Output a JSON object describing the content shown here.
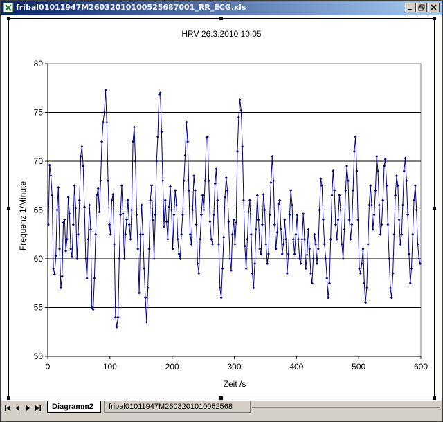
{
  "window": {
    "title": "fribal01011947M26032010100525687001_RR_ECG.xls",
    "minimize_icon": "minimize-icon",
    "restore_icon": "restore-icon",
    "close_icon": "close-icon",
    "app_icon": "excel-icon"
  },
  "sheet_tabs": {
    "items": [
      {
        "label": "Diagramm2",
        "active": true
      },
      {
        "label": "fribal01011947M260320101005256​8",
        "active": false
      }
    ],
    "nav_icons": [
      "first-sheet-icon",
      "prev-sheet-icon",
      "next-sheet-icon",
      "last-sheet-icon"
    ]
  },
  "chart_data": {
    "type": "line",
    "title": "HRV  26.3.2010 10:05",
    "xlabel": "Zeit /s",
    "ylabel": "Frequenz 1/Minute",
    "xlim": [
      0,
      600
    ],
    "ylim": [
      50,
      80
    ],
    "xticks": [
      0,
      100,
      200,
      300,
      400,
      500,
      600
    ],
    "yticks": [
      50,
      55,
      60,
      65,
      70,
      75,
      80
    ],
    "grid": "horizontal",
    "legend": "none",
    "series_color": "#000080",
    "marker": "diamond",
    "series": [
      {
        "points": [
          [
            1,
            63.5
          ],
          [
            3,
            69.6
          ],
          [
            5,
            68.5
          ],
          [
            7,
            66.5
          ],
          [
            9,
            59
          ],
          [
            11,
            58.4
          ],
          [
            13,
            60.3
          ],
          [
            15,
            65
          ],
          [
            17,
            67.3
          ],
          [
            19,
            61
          ],
          [
            21,
            57
          ],
          [
            23,
            58.2
          ],
          [
            25,
            63.7
          ],
          [
            27,
            64
          ],
          [
            29,
            60.8
          ],
          [
            31,
            62
          ],
          [
            33,
            66.3
          ],
          [
            35,
            64.6
          ],
          [
            37,
            61
          ],
          [
            39,
            60.2
          ],
          [
            41,
            63.5
          ],
          [
            43,
            67.5
          ],
          [
            45,
            65.2
          ],
          [
            47,
            60
          ],
          [
            49,
            62.5
          ],
          [
            51,
            66
          ],
          [
            53,
            70.5
          ],
          [
            55,
            71.5
          ],
          [
            57,
            69.5
          ],
          [
            59,
            65.3
          ],
          [
            61,
            60
          ],
          [
            63,
            58
          ],
          [
            65,
            62
          ],
          [
            67,
            65.5
          ],
          [
            69,
            63
          ],
          [
            71,
            55
          ],
          [
            73,
            54.8
          ],
          [
            75,
            58
          ],
          [
            77,
            62.5
          ],
          [
            79,
            66.5
          ],
          [
            81,
            67.2
          ],
          [
            83,
            64.8
          ],
          [
            85,
            68
          ],
          [
            87,
            72
          ],
          [
            89,
            74
          ],
          [
            91,
            75
          ],
          [
            93,
            77.3
          ],
          [
            95,
            74
          ],
          [
            97,
            68
          ],
          [
            99,
            63.5
          ],
          [
            101,
            62.5
          ],
          [
            103,
            66
          ],
          [
            105,
            66.6
          ],
          [
            107,
            61.5
          ],
          [
            109,
            54
          ],
          [
            111,
            53
          ],
          [
            113,
            54
          ],
          [
            115,
            60
          ],
          [
            117,
            64.5
          ],
          [
            119,
            67.5
          ],
          [
            121,
            64.6
          ],
          [
            123,
            60
          ],
          [
            125,
            62.5
          ],
          [
            127,
            64
          ],
          [
            129,
            66
          ],
          [
            131,
            63.5
          ],
          [
            133,
            62
          ],
          [
            135,
            65
          ],
          [
            137,
            72
          ],
          [
            139,
            73.5
          ],
          [
            141,
            70
          ],
          [
            143,
            64.5
          ],
          [
            145,
            61
          ],
          [
            147,
            56.5
          ],
          [
            149,
            62.5
          ],
          [
            151,
            65.5
          ],
          [
            153,
            62.5
          ],
          [
            155,
            59
          ],
          [
            157,
            56
          ],
          [
            159,
            53.5
          ],
          [
            161,
            57
          ],
          [
            163,
            61
          ],
          [
            165,
            66
          ],
          [
            167,
            67.5
          ],
          [
            169,
            64
          ],
          [
            171,
            60
          ],
          [
            173,
            64.5
          ],
          [
            175,
            70
          ],
          [
            177,
            72.5
          ],
          [
            179,
            76.8
          ],
          [
            181,
            77
          ],
          [
            183,
            73
          ],
          [
            185,
            68
          ],
          [
            187,
            63.3
          ],
          [
            189,
            66
          ],
          [
            191,
            63.8
          ],
          [
            193,
            62
          ],
          [
            195,
            65.3
          ],
          [
            197,
            67.4
          ],
          [
            199,
            65
          ],
          [
            201,
            61
          ],
          [
            203,
            64.5
          ],
          [
            205,
            67
          ],
          [
            207,
            65.5
          ],
          [
            209,
            62
          ],
          [
            211,
            60.5
          ],
          [
            213,
            60
          ],
          [
            215,
            62.5
          ],
          [
            217,
            64.5
          ],
          [
            219,
            68
          ],
          [
            221,
            70.6
          ],
          [
            223,
            74
          ],
          [
            225,
            72
          ],
          [
            227,
            67
          ],
          [
            229,
            62.5
          ],
          [
            231,
            61.5
          ],
          [
            233,
            65
          ],
          [
            235,
            68.5
          ],
          [
            237,
            67
          ],
          [
            239,
            63.5
          ],
          [
            241,
            59.5
          ],
          [
            243,
            58.5
          ],
          [
            245,
            62
          ],
          [
            247,
            64.5
          ],
          [
            249,
            66.5
          ],
          [
            251,
            65
          ],
          [
            253,
            68
          ],
          [
            255,
            72.4
          ],
          [
            257,
            72.5
          ],
          [
            259,
            68
          ],
          [
            261,
            63.8
          ],
          [
            263,
            62
          ],
          [
            265,
            61.5
          ],
          [
            267,
            64.5
          ],
          [
            269,
            67.7
          ],
          [
            271,
            69.2
          ],
          [
            273,
            66
          ],
          [
            275,
            61.5
          ],
          [
            277,
            57
          ],
          [
            279,
            56
          ],
          [
            281,
            59
          ],
          [
            283,
            62.2
          ],
          [
            285,
            66.3
          ],
          [
            287,
            68.3
          ],
          [
            289,
            67
          ],
          [
            291,
            63.8
          ],
          [
            293,
            60
          ],
          [
            295,
            58.8
          ],
          [
            297,
            62.5
          ],
          [
            299,
            64
          ],
          [
            301,
            61.5
          ],
          [
            303,
            63.7
          ],
          [
            305,
            71
          ],
          [
            307,
            74.5
          ],
          [
            309,
            76.3
          ],
          [
            311,
            75.2
          ],
          [
            313,
            71.5
          ],
          [
            315,
            66
          ],
          [
            317,
            61.3
          ],
          [
            319,
            59
          ],
          [
            321,
            62
          ],
          [
            323,
            64.8
          ],
          [
            325,
            66
          ],
          [
            327,
            62.5
          ],
          [
            329,
            58.5
          ],
          [
            331,
            57
          ],
          [
            333,
            59.5
          ],
          [
            335,
            63
          ],
          [
            337,
            66.5
          ],
          [
            339,
            64
          ],
          [
            341,
            61
          ],
          [
            343,
            60.5
          ],
          [
            345,
            63.5
          ],
          [
            347,
            66.6
          ],
          [
            349,
            65
          ],
          [
            351,
            61.5
          ],
          [
            353,
            59.5
          ],
          [
            355,
            60.5
          ],
          [
            357,
            64.5
          ],
          [
            359,
            67.8
          ],
          [
            361,
            70.5
          ],
          [
            363,
            68
          ],
          [
            365,
            63.5
          ],
          [
            367,
            61
          ],
          [
            369,
            62.7
          ],
          [
            371,
            65.6
          ],
          [
            373,
            66
          ],
          [
            375,
            63
          ],
          [
            377,
            60.5
          ],
          [
            379,
            61.5
          ],
          [
            381,
            64
          ],
          [
            383,
            62
          ],
          [
            385,
            58.5
          ],
          [
            387,
            60.5
          ],
          [
            389,
            64.5
          ],
          [
            391,
            67
          ],
          [
            393,
            65.5
          ],
          [
            395,
            62
          ],
          [
            397,
            60.5
          ],
          [
            399,
            62.5
          ],
          [
            401,
            64.5
          ],
          [
            403,
            62
          ],
          [
            405,
            60
          ],
          [
            407,
            59.5
          ],
          [
            409,
            62
          ],
          [
            411,
            64.6
          ],
          [
            413,
            62
          ],
          [
            415,
            59
          ],
          [
            417,
            60.4
          ],
          [
            419,
            63
          ],
          [
            421,
            61
          ],
          [
            423,
            58.5
          ],
          [
            425,
            57.5
          ],
          [
            427,
            60
          ],
          [
            429,
            62.5
          ],
          [
            431,
            61.5
          ],
          [
            433,
            59.5
          ],
          [
            435,
            61
          ],
          [
            437,
            65
          ],
          [
            439,
            68.2
          ],
          [
            441,
            67.5
          ],
          [
            443,
            64
          ],
          [
            445,
            61.5
          ],
          [
            447,
            60
          ],
          [
            449,
            58
          ],
          [
            451,
            56
          ],
          [
            453,
            57.5
          ],
          [
            455,
            62
          ],
          [
            457,
            66.5
          ],
          [
            459,
            69
          ],
          [
            461,
            67
          ],
          [
            463,
            63.5
          ],
          [
            465,
            62
          ],
          [
            467,
            64
          ],
          [
            469,
            66.5
          ],
          [
            471,
            65
          ],
          [
            473,
            61.5
          ],
          [
            475,
            60
          ],
          [
            477,
            63
          ],
          [
            479,
            67
          ],
          [
            481,
            69.5
          ],
          [
            483,
            68
          ],
          [
            485,
            64
          ],
          [
            487,
            62
          ],
          [
            489,
            63.5
          ],
          [
            491,
            67
          ],
          [
            493,
            71
          ],
          [
            495,
            72.5
          ],
          [
            497,
            69
          ],
          [
            499,
            64
          ],
          [
            501,
            59
          ],
          [
            503,
            58.5
          ],
          [
            505,
            59.5
          ],
          [
            507,
            61
          ],
          [
            509,
            57.5
          ],
          [
            511,
            55.5
          ],
          [
            513,
            57
          ],
          [
            515,
            61.5
          ],
          [
            517,
            65.5
          ],
          [
            519,
            67.5
          ],
          [
            521,
            65.5
          ],
          [
            523,
            63
          ],
          [
            525,
            64.5
          ],
          [
            527,
            67
          ],
          [
            529,
            70.5
          ],
          [
            531,
            69
          ],
          [
            533,
            65.5
          ],
          [
            535,
            62.5
          ],
          [
            537,
            63.5
          ],
          [
            539,
            66
          ],
          [
            541,
            69.5
          ],
          [
            543,
            70.2
          ],
          [
            545,
            67.5
          ],
          [
            547,
            63.5
          ],
          [
            549,
            60
          ],
          [
            551,
            57
          ],
          [
            553,
            56
          ],
          [
            555,
            58.5
          ],
          [
            557,
            62.5
          ],
          [
            559,
            66.5
          ],
          [
            561,
            68.5
          ],
          [
            563,
            67.5
          ],
          [
            565,
            64
          ],
          [
            567,
            61.5
          ],
          [
            569,
            62.5
          ],
          [
            571,
            65.5
          ],
          [
            573,
            69
          ],
          [
            575,
            70.3
          ],
          [
            577,
            68
          ],
          [
            579,
            64.5
          ],
          [
            581,
            60.5
          ],
          [
            583,
            57.5
          ],
          [
            585,
            59
          ],
          [
            587,
            62.5
          ],
          [
            589,
            66
          ],
          [
            591,
            67.5
          ],
          [
            593,
            65
          ],
          [
            595,
            61.5
          ],
          [
            597,
            60
          ],
          [
            599,
            59.5
          ]
        ]
      }
    ]
  }
}
